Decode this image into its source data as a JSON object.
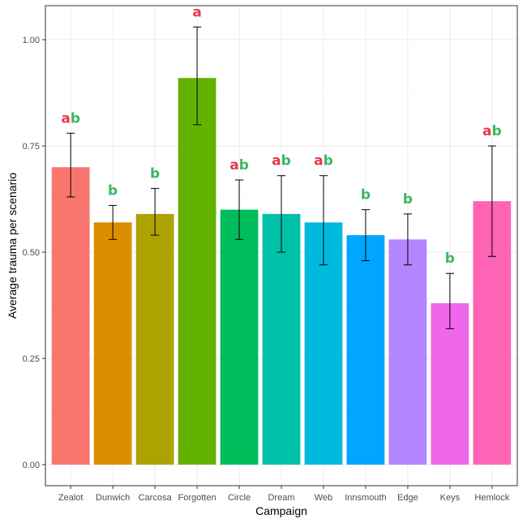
{
  "chart_data": {
    "type": "bar",
    "xlabel": "Campaign",
    "ylabel": "Average trauma per scenario",
    "ylim": [
      0,
      1.08
    ],
    "yticks": [
      0.0,
      0.25,
      0.5,
      0.75,
      1.0
    ],
    "ytick_labels": [
      "0.00",
      "0.25",
      "0.50",
      "0.75",
      "1.00"
    ],
    "grid": true,
    "legend": "none",
    "categories": [
      "Zealot",
      "Dunwich",
      "Carcosa",
      "Forgotten",
      "Circle",
      "Dream",
      "Web",
      "Innsmouth",
      "Edge",
      "Keys",
      "Hemlock"
    ],
    "values": [
      0.7,
      0.57,
      0.59,
      0.91,
      0.6,
      0.59,
      0.57,
      0.54,
      0.53,
      0.38,
      0.62
    ],
    "error_low": [
      0.63,
      0.53,
      0.54,
      0.8,
      0.53,
      0.5,
      0.47,
      0.48,
      0.47,
      0.32,
      0.49
    ],
    "error_high": [
      0.78,
      0.61,
      0.65,
      1.03,
      0.67,
      0.68,
      0.68,
      0.6,
      0.59,
      0.45,
      0.75
    ],
    "bar_colors": [
      "#F8766D",
      "#DB8E00",
      "#AEA200",
      "#64B200",
      "#00BD5C",
      "#00C1A7",
      "#00BADE",
      "#00A6FF",
      "#B385FF",
      "#EF67EB",
      "#FF63B6"
    ],
    "group_labels": [
      "ab",
      "b",
      "b",
      "a",
      "ab",
      "ab",
      "ab",
      "b",
      "b",
      "b",
      "ab"
    ],
    "group_colors": {
      "a": "#E8384F",
      "b": "#3CB861"
    }
  }
}
